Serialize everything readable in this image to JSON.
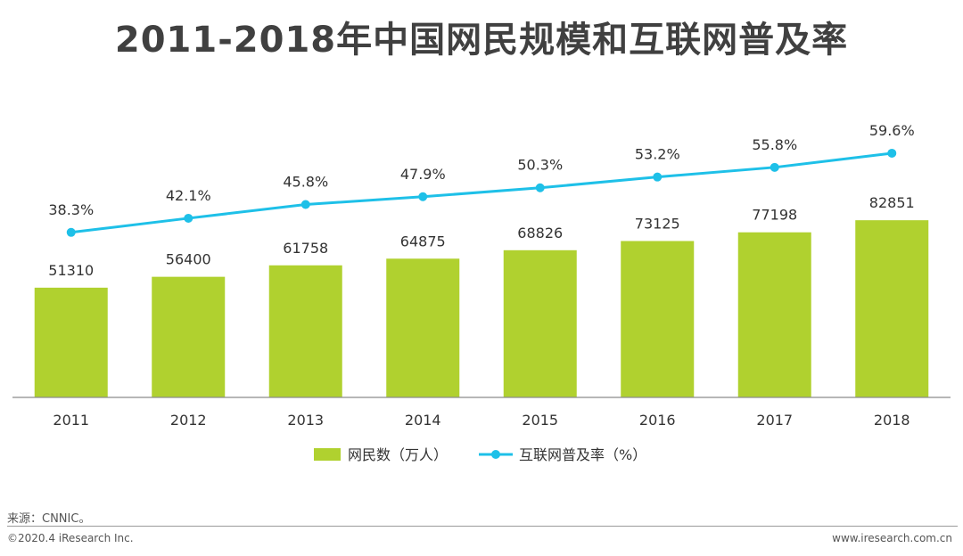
{
  "chart_data": {
    "type": "bar",
    "title": "2011-2018年中国网民规模和互联网普及率",
    "categories": [
      "2011",
      "2012",
      "2013",
      "2014",
      "2015",
      "2016",
      "2017",
      "2018"
    ],
    "series": [
      {
        "name": "网民数（万人）",
        "type": "bar",
        "color": "#b0d12f",
        "values": [
          51310,
          56400,
          61758,
          64875,
          68826,
          73125,
          77198,
          82851
        ],
        "labels": [
          "51310",
          "56400",
          "61758",
          "64875",
          "68826",
          "73125",
          "77198",
          "82851"
        ]
      },
      {
        "name": "互联网普及率（%）",
        "type": "line",
        "color": "#1ec0e8",
        "values": [
          38.3,
          42.1,
          45.8,
          47.9,
          50.3,
          53.2,
          55.8,
          59.6
        ],
        "labels": [
          "38.3%",
          "42.1%",
          "45.8%",
          "47.9%",
          "50.3%",
          "53.2%",
          "55.8%",
          "59.6%"
        ]
      }
    ],
    "bar_axis_range": [
      0,
      100000
    ],
    "line_axis_range": [
      0,
      100
    ],
    "grid": false,
    "legend_position": "bottom"
  },
  "footer": {
    "source": "来源：CNNIC。",
    "copyright": "©2020.4 iResearch Inc.",
    "website": "www.iresearch.com.cn"
  }
}
